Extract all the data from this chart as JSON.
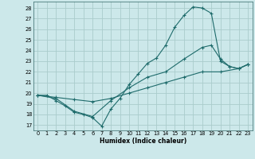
{
  "xlabel": "Humidex (Indice chaleur)",
  "bg_color": "#cce8ea",
  "grid_color": "#aacccc",
  "line_color": "#1e6b6b",
  "xlim": [
    -0.5,
    23.5
  ],
  "ylim": [
    16.5,
    28.6
  ],
  "xticks": [
    0,
    1,
    2,
    3,
    4,
    5,
    6,
    7,
    8,
    9,
    10,
    11,
    12,
    13,
    14,
    15,
    16,
    17,
    18,
    19,
    20,
    21,
    22,
    23
  ],
  "yticks": [
    17,
    18,
    19,
    20,
    21,
    22,
    23,
    24,
    25,
    26,
    27,
    28
  ],
  "line1_x": [
    0,
    1,
    2,
    3,
    4,
    5,
    6,
    7,
    8,
    9,
    10,
    11,
    12,
    13,
    14,
    15,
    16,
    17,
    18,
    19,
    20,
    21,
    22,
    23
  ],
  "line1_y": [
    19.8,
    19.8,
    19.3,
    18.8,
    18.2,
    18.0,
    17.7,
    16.9,
    18.5,
    19.5,
    20.8,
    21.8,
    22.8,
    23.3,
    24.5,
    26.2,
    27.3,
    28.1,
    28.0,
    27.5,
    23.0,
    22.5,
    22.3,
    22.7
  ],
  "line2_x": [
    0,
    2,
    4,
    6,
    8,
    10,
    12,
    14,
    16,
    18,
    19,
    20,
    21,
    22,
    23
  ],
  "line2_y": [
    19.8,
    19.5,
    18.3,
    17.8,
    19.3,
    20.5,
    21.5,
    22.0,
    23.2,
    24.3,
    24.5,
    23.2,
    22.5,
    22.3,
    22.7
  ],
  "line3_x": [
    0,
    2,
    4,
    6,
    8,
    10,
    12,
    14,
    16,
    18,
    20,
    22,
    23
  ],
  "line3_y": [
    19.8,
    19.6,
    19.4,
    19.2,
    19.5,
    20.0,
    20.5,
    21.0,
    21.5,
    22.0,
    22.0,
    22.3,
    22.7
  ]
}
